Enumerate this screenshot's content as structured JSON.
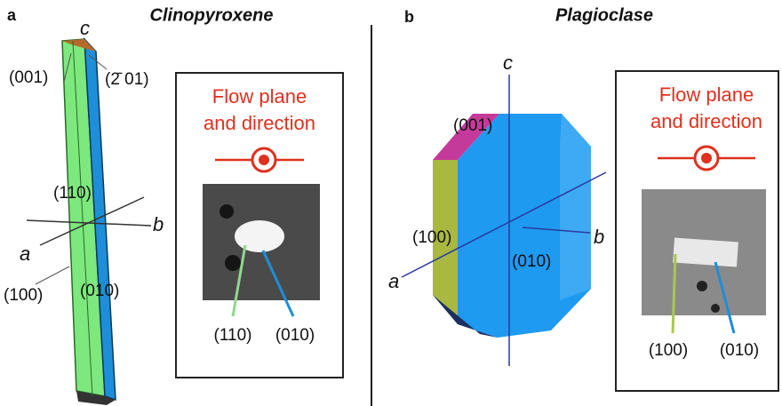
{
  "panels": [
    {
      "label": "a",
      "title": "Clinopyroxene",
      "axes": {
        "a": "a",
        "b": "b",
        "c": "c"
      },
      "faces": {
        "top": "(001)",
        "top_right": "(2̄ 01)",
        "middle": "(110)",
        "left": "(100)",
        "right": "(010)"
      },
      "inset": {
        "title_lines": [
          "Flow plane",
          "and direction"
        ],
        "labels": [
          "(110)",
          "(010)"
        ]
      }
    },
    {
      "label": "b",
      "title": "Plagioclase",
      "axes": {
        "a": "a",
        "b": "b",
        "c": "c"
      },
      "faces": {
        "top": "(001)",
        "left": "(100)",
        "front": "(010)"
      },
      "inset": {
        "title_lines": [
          "Flow plane",
          "and direction"
        ],
        "labels": [
          "(100)",
          "(010)"
        ]
      }
    }
  ]
}
